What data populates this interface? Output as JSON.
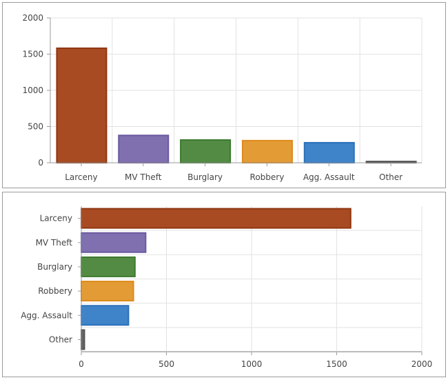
{
  "chart_data": [
    {
      "type": "bar",
      "orientation": "vertical",
      "categories": [
        "Larceny",
        "MV Theft",
        "Burglary",
        "Robbery",
        "Agg. Assault",
        "Other"
      ],
      "values": [
        1582,
        378,
        315,
        306,
        277,
        18
      ],
      "ylim": [
        0,
        2000
      ],
      "yticks": [
        "0",
        "500",
        "1000",
        "1500",
        "2000"
      ],
      "grid": true,
      "colors": [
        "#a84b22",
        "#8070b0",
        "#548b44",
        "#e39b35",
        "#3f84c9",
        "#666666"
      ],
      "border_colors": [
        "#8f3510",
        "#6a58a0",
        "#3c7a2e",
        "#dd8a1c",
        "#2a70ba",
        "#555555"
      ]
    },
    {
      "type": "bar",
      "orientation": "horizontal",
      "categories": [
        "Larceny",
        "MV Theft",
        "Burglary",
        "Robbery",
        "Agg. Assault",
        "Other"
      ],
      "values": [
        1582,
        378,
        315,
        306,
        277,
        18
      ],
      "xlim": [
        0,
        2000
      ],
      "xticks": [
        "0",
        "500",
        "1000",
        "1500",
        "2000"
      ],
      "grid": true,
      "colors": [
        "#a84b22",
        "#8070b0",
        "#548b44",
        "#e39b35",
        "#3f84c9",
        "#666666"
      ],
      "border_colors": [
        "#8f3510",
        "#6a58a0",
        "#3c7a2e",
        "#dd8a1c",
        "#2a70ba",
        "#555555"
      ]
    }
  ]
}
